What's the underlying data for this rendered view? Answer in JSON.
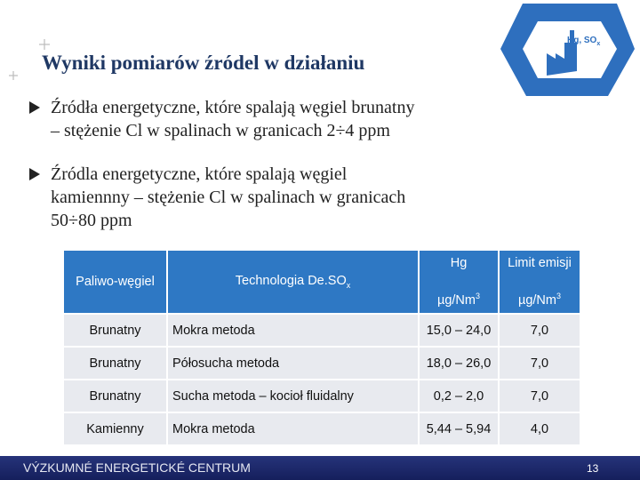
{
  "header": {
    "title": "Wyniki pomiarów źródel w działaniu"
  },
  "bullets": [
    {
      "lines": [
        "Źródła energetyczne, które spalają węgiel brunatny",
        "– stężenie Cl w spalinach w granicach 2÷4 ppm"
      ]
    },
    {
      "lines": [
        "Źródla energetyczne, które spalają węgiel",
        "kamiennny – stężenie Cl w spalinach w granicach",
        "50÷80 ppm"
      ]
    }
  ],
  "table": {
    "header": [
      {
        "text": "Paliwo-węgiel"
      },
      {
        "text": "Technologia De.SO",
        "sub": "x"
      },
      {
        "top": "Hg",
        "unit": "µg/Nm",
        "sup": "3"
      },
      {
        "top": "Limit emisji",
        "unit": "µg/Nm",
        "sup": "3"
      }
    ],
    "rows": [
      [
        "Brunatny",
        "Mokra metoda",
        "15,0 – 24,0",
        "7,0"
      ],
      [
        "Brunatny",
        "Półosucha metoda",
        "18,0 – 26,0",
        "7,0"
      ],
      [
        "Brunatny",
        "Sucha metoda – kocioł fluidalny",
        "0,2 – 2,0",
        "7,0"
      ],
      [
        "Kamienny",
        "Mokra metoda",
        "5,44 – 5,94",
        "4,0"
      ]
    ]
  },
  "logo": {
    "text": "Hg, SO",
    "sub": "x"
  },
  "footer": {
    "text": "VÝZKUMNÉ ENERGETICKÉ CENTRUM",
    "page": "13"
  }
}
